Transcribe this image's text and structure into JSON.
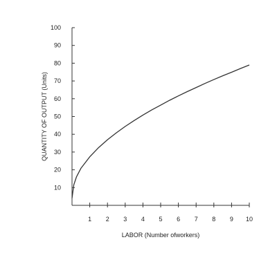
{
  "chart_data": {
    "type": "line",
    "title": "",
    "xlabel": "LABOR (Number ofworkers)",
    "ylabel": "QUANTITY OF OUTPUT (Units)",
    "xlim": [
      0,
      10
    ],
    "ylim": [
      0,
      100
    ],
    "x_ticks": [
      "1",
      "2",
      "3",
      "4",
      "5",
      "6",
      "7",
      "8",
      "9",
      "10"
    ],
    "y_ticks": [
      "10",
      "20",
      "30",
      "40",
      "50",
      "60",
      "70",
      "80",
      "90",
      "100"
    ],
    "grid": false,
    "legend": "none",
    "series": [
      {
        "color": "#333333",
        "points": [
          {
            "x": 0,
            "y": 4
          },
          {
            "x": 0.1,
            "y": 11.5
          },
          {
            "x": 0.25,
            "y": 16.0
          },
          {
            "x": 0.5,
            "y": 20.8
          },
          {
            "x": 1,
            "y": 27.3
          },
          {
            "x": 1.5,
            "y": 32.5
          },
          {
            "x": 2,
            "y": 36.9
          },
          {
            "x": 2.5,
            "y": 40.8
          },
          {
            "x": 3,
            "y": 44.4
          },
          {
            "x": 3.5,
            "y": 47.7
          },
          {
            "x": 4,
            "y": 50.8
          },
          {
            "x": 4.5,
            "y": 53.7
          },
          {
            "x": 5,
            "y": 56.4
          },
          {
            "x": 5.5,
            "y": 59.1
          },
          {
            "x": 6,
            "y": 61.6
          },
          {
            "x": 6.5,
            "y": 64.0
          },
          {
            "x": 7,
            "y": 66.3
          },
          {
            "x": 7.5,
            "y": 68.6
          },
          {
            "x": 8,
            "y": 70.8
          },
          {
            "x": 8.5,
            "y": 72.9
          },
          {
            "x": 9,
            "y": 74.9
          },
          {
            "x": 9.5,
            "y": 77.0
          },
          {
            "x": 10,
            "y": 79.0
          }
        ]
      }
    ]
  }
}
